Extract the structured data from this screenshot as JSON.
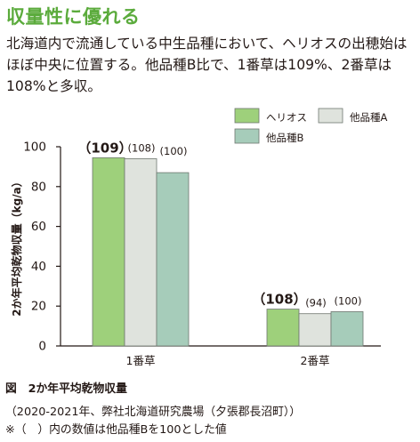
{
  "heading": "収量性に優れる",
  "intro": "北海道内で流通している中生品種において、ヘリオスの出穂始はほぼ中央に位置する。他品種B比で、1番草は109%、2番草は108%と多収。",
  "colors": {
    "heading": "#5bab3c",
    "helios": "#9ed07b",
    "other_a": "#dfe3dd",
    "other_b": "#a6ccba",
    "axis": "#231815"
  },
  "chart_data": {
    "type": "bar",
    "title": "",
    "ylabel": "2か年平均乾物収量（kg/a）",
    "xlabel": "",
    "ylim": [
      0,
      100
    ],
    "yticks": [
      0,
      20,
      40,
      60,
      80,
      100
    ],
    "grid": false,
    "legend_position": "top-right",
    "categories": [
      "1番草",
      "2番草"
    ],
    "series": [
      {
        "name": "ヘリオス",
        "values": [
          94.5,
          18.5
        ],
        "labels": [
          "（109）",
          "（108）"
        ],
        "color": "#9ed07b"
      },
      {
        "name": "他品種A",
        "values": [
          94.0,
          16.2
        ],
        "labels": [
          "(108)",
          "(94)"
        ],
        "color": "#dfe3dd"
      },
      {
        "name": "他品種B",
        "values": [
          87.0,
          17.2
        ],
        "labels": [
          "(100)",
          "(100)"
        ],
        "color": "#a6ccba"
      }
    ]
  },
  "caption": {
    "figure": "図　2か年平均乾物収量",
    "source": "（2020-2021年、弊社北海道研究農場（夕張郡長沼町））",
    "note": "※（　）内の数値は他品種Bを100とした値"
  }
}
